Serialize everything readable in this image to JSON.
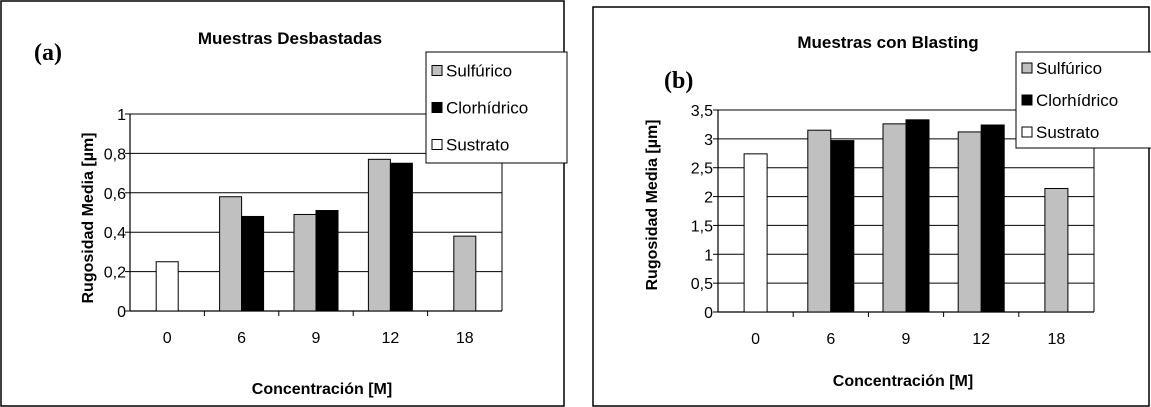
{
  "chart_data": [
    {
      "type": "bar",
      "panel_label": "(a)",
      "title": "Muestras Desbastadas",
      "xlabel": "Concentración [M]",
      "ylabel": "Rugosidad Media [µm]",
      "categories": [
        "0",
        "6",
        "9",
        "12",
        "18"
      ],
      "ylim": [
        0,
        1
      ],
      "yticks": [
        "0",
        "0,2",
        "0,4",
        "0,6",
        "0,8",
        "1"
      ],
      "grid": true,
      "legend_position": "top-right",
      "series": [
        {
          "name": "Sulfúrico",
          "color": "#c0c0c0",
          "values": [
            null,
            0.58,
            0.49,
            0.77,
            0.38
          ]
        },
        {
          "name": "Clorhídrico",
          "color": "#000000",
          "values": [
            null,
            0.48,
            0.51,
            0.75,
            null
          ]
        },
        {
          "name": "Sustrato",
          "color": "#ffffff",
          "values": [
            0.25,
            null,
            null,
            null,
            null
          ]
        }
      ]
    },
    {
      "type": "bar",
      "panel_label": "(b)",
      "title": "Muestras con Blasting",
      "xlabel": "Concentración [M]",
      "ylabel": "Rugosidad Media [µm]",
      "categories": [
        "0",
        "6",
        "9",
        "12",
        "18"
      ],
      "ylim": [
        0,
        3.5
      ],
      "yticks": [
        "0",
        "0,5",
        "1",
        "1,5",
        "2",
        "2,5",
        "3",
        "3,5"
      ],
      "grid": true,
      "legend_position": "top-right",
      "series": [
        {
          "name": "Sulfúrico",
          "color": "#c0c0c0",
          "values": [
            null,
            3.15,
            3.26,
            3.12,
            2.14
          ]
        },
        {
          "name": "Clorhídrico",
          "color": "#000000",
          "values": [
            null,
            2.97,
            3.33,
            3.24,
            null
          ]
        },
        {
          "name": "Sustrato",
          "color": "#ffffff",
          "values": [
            2.74,
            null,
            null,
            null,
            null
          ]
        }
      ]
    }
  ]
}
